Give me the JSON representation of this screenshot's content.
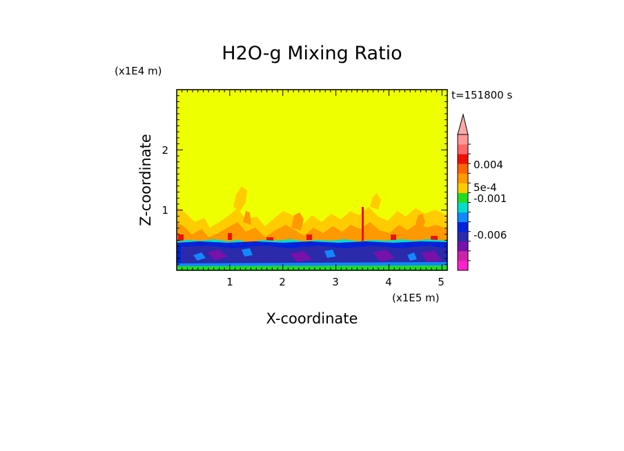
{
  "chart_data": {
    "type": "heatmap",
    "title": "H2O-g Mixing Ratio",
    "time_label": "t=151800 s",
    "xlabel": "X-coordinate",
    "ylabel": "Z-coordinate",
    "x_unit": "(x1E5 m)",
    "y_unit": "(x1E4 m)",
    "xlim": [
      0,
      5.1
    ],
    "ylim": [
      0,
      3.0
    ],
    "x_ticks": [
      "1",
      "2",
      "3",
      "4",
      "5"
    ],
    "y_ticks": [
      "1",
      "2"
    ],
    "colorbar": {
      "tick_labels": [
        "0.004",
        "5e-4",
        "-0.001",
        "-0.006"
      ],
      "colors_bottom_to_top": [
        "#ff22cc",
        "#cc22aa",
        "#7711aa",
        "#2a2aaa",
        "#0022dd",
        "#1188ff",
        "#00ddcc",
        "#22dd22",
        "#ffcc00",
        "#ff9900",
        "#ff6600",
        "#ee1100",
        "#ff6666",
        "#ff9999"
      ],
      "above_max_color": "#ffaaaa",
      "background_color": "#eeff00"
    }
  }
}
